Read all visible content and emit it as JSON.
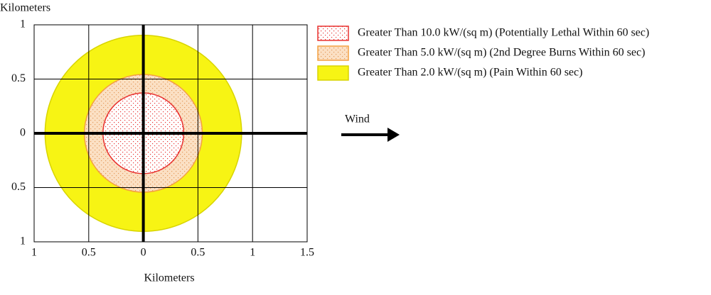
{
  "chart_data": {
    "type": "threat-zone",
    "x_label": "Kilometers",
    "y_label": "Kilometers",
    "xlim": [
      -1,
      1.5
    ],
    "ylim": [
      -1,
      1
    ],
    "xticks": [
      {
        "value": -1,
        "label": "1"
      },
      {
        "value": -0.5,
        "label": "0.5"
      },
      0,
      0.5,
      1,
      1.5
    ],
    "yticks": [
      {
        "value": -1,
        "label": "1"
      },
      {
        "value": -0.5,
        "label": "0.5"
      },
      0,
      0.5,
      1
    ],
    "grid": true,
    "zones": [
      {
        "name": "Greater Than 10.0 kW/(sq m) (Potentially Lethal Within 60 sec)",
        "radius": 0.37,
        "fill": "#ffffff",
        "dot": "#e8312f",
        "edge": "#e8312f"
      },
      {
        "name": "Greater Than 5.0 kW/(sq m) (2nd Degree Burns Within 60 sec)",
        "radius": 0.54,
        "fill": "#fbe0c4",
        "dot": "#e49a5c",
        "edge": "#f4a040"
      },
      {
        "name": "Greater Than 2.0 kW/(sq m) (Pain Within 60 sec)",
        "radius": 0.9,
        "fill": "#f7f414",
        "dot": null,
        "edge": "#d8d400"
      }
    ],
    "annotation": "Wind"
  }
}
